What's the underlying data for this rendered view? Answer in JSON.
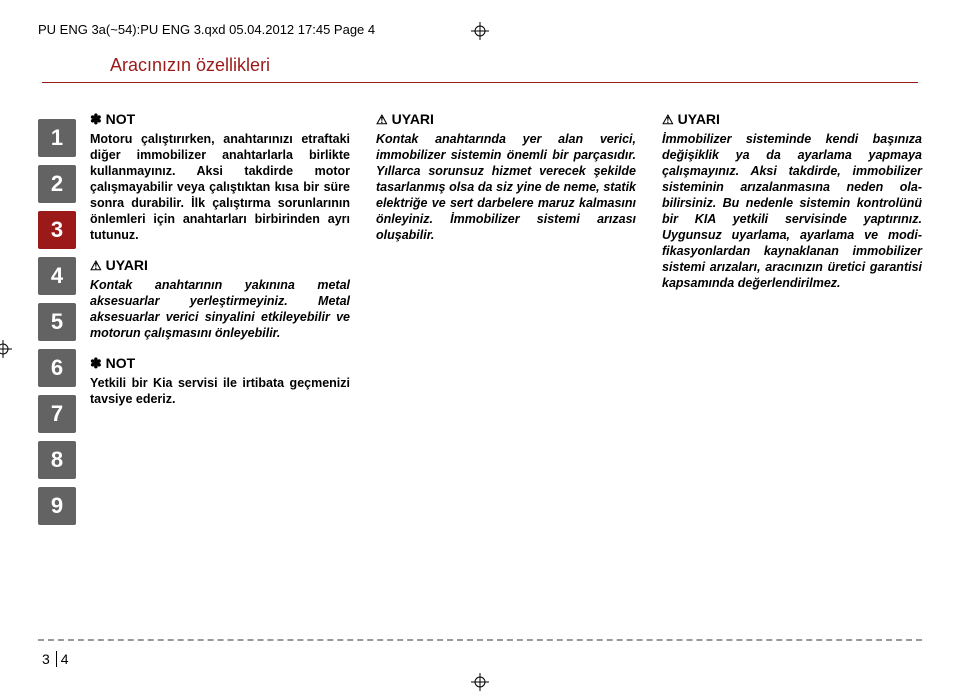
{
  "prepress_line": "PU ENG 3a(~54):PU ENG 3.qxd  05.04.2012  17:45  Page 4",
  "section_title": "Aracınızın özellikleri",
  "tabs": [
    "1",
    "2",
    "3",
    "4",
    "5",
    "6",
    "7",
    "8",
    "9"
  ],
  "active_tab_index": 2,
  "col1": {
    "not1_head": "✽ NOT",
    "not1_body": "Motoru çalıştırırken, anahtarınızı etraftaki diğer immobilizer anahtarlarla birlikte kullan­mayınız. Aksi takdirde motor çalışmayabilir veya çalıştıktan kısa bir süre sonra durabilir. İlk çalıştırma sorunlarının önlemleri için anahtarları birbirinden ayrı tutunuz.",
    "uyari1_head": "UYARI",
    "uyari1_body": "Kontak anahtarının yakınına metal aksesuarlar yer­leştirmeyiniz. Metal aksesuarlar verici sinyalini etkileyebilir ve motorun çalışmasını önleye­bilir.",
    "not2_head": "✽ NOT",
    "not2_body": "Yetkili bir Kia servisi ile irtibata geçmenizi tavsiye ederiz."
  },
  "col2": {
    "uyari_head": "UYARI",
    "uyari_body": "Kontak anahtarında yer alan verici, immobilizer sistemin önemli bir parçasıdır. Yıllarca sorunsuz hizmet verecek şek­ilde tasarlanmış olsa da siz yine de neme, statik elektriğe ve sert darbelere maruz kalmasını önleyiniz. İmmobilizer sistemi arızası oluşabilir."
  },
  "col3": {
    "uyari_head": "UYARI",
    "uyari_body": "İmmobilizer sisteminde kendi başınıza değişiklik ya da ayarla­ma yapmaya çalışmayınız. Aksi takdirde, immobilizer sisteminin arızalanmasına neden ola­bilirsiniz. Bu nedenle sistemin kontrolünü bir KIA yetkili servisinde yaptırınız. Uygunsuz uyarlama, ayarlama ve modi­fikasyonlardan kaynaklanan immobilizer sistemi arızaları, aracınızın üretici garantisi kap­samında değerlendirilmez."
  },
  "footer": {
    "section": "3",
    "page": "4"
  },
  "colors": {
    "brand": "#9b1919",
    "tab_gray": "#636363",
    "dash": "#999999"
  }
}
